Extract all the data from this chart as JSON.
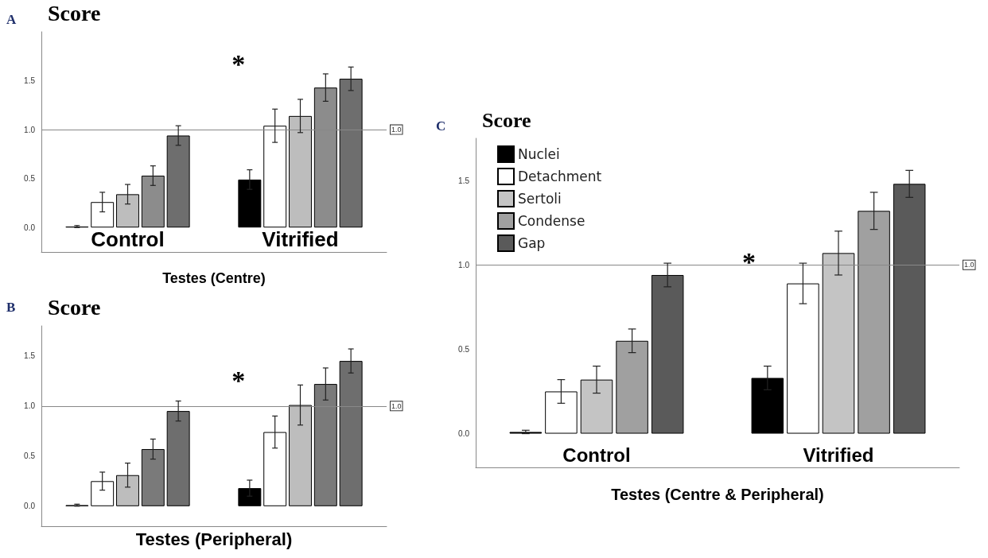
{
  "chart_data": [
    {
      "type": "bar",
      "ylabel": "Score",
      "xlabel": "Testes (Centre)",
      "annotations": [
        "A",
        "*"
      ],
      "categories": [
        "Control",
        "Vitrified"
      ],
      "ylim": [
        -0.25,
        2.0
      ],
      "yticks": [
        {
          "value": 0,
          "label": "0.0"
        },
        {
          "value": 0.5,
          "label": "0.5"
        },
        {
          "value": 1,
          "label": "1.0"
        },
        {
          "value": 1.5,
          "label": "1.5"
        }
      ],
      "grid": false,
      "legend": false,
      "ref_lines": [
        {
          "axis": "y",
          "value": 1,
          "label": "1.0"
        }
      ],
      "series": [
        {
          "color": "#000000",
          "values": [
            0.01,
            0.49
          ],
          "errors": [
            0.01,
            0.1
          ]
        },
        {
          "color": "#ffffff",
          "values": [
            0.26,
            1.04
          ],
          "errors": [
            0.1,
            0.17
          ]
        },
        {
          "color": "#bdbdbd",
          "values": [
            0.34,
            1.14
          ],
          "errors": [
            0.1,
            0.17
          ]
        },
        {
          "color": "#8c8c8c",
          "values": [
            0.53,
            1.43
          ],
          "errors": [
            0.1,
            0.14
          ]
        },
        {
          "color": "#6e6e6e",
          "values": [
            0.94,
            1.52
          ],
          "errors": [
            0.1,
            0.12
          ]
        }
      ]
    },
    {
      "type": "bar",
      "ylabel": "Score",
      "xlabel": "Testes (Peripheral)",
      "annotations": [
        "B",
        "*"
      ],
      "categories": [
        null,
        null
      ],
      "ylim": [
        -0.2,
        1.8
      ],
      "yticks": [
        {
          "value": 0,
          "label": "0.0"
        },
        {
          "value": 0.5,
          "label": "0.5"
        },
        {
          "value": 1,
          "label": "1.0"
        },
        {
          "value": 1.5,
          "label": "1.5"
        }
      ],
      "grid": false,
      "legend": false,
      "ref_lines": [
        {
          "axis": "y",
          "value": 1,
          "label": "1.0"
        }
      ],
      "series": [
        {
          "color": "#000000",
          "values": [
            0.01,
            0.18
          ],
          "errors": [
            0.01,
            0.08
          ]
        },
        {
          "color": "#ffffff",
          "values": [
            0.25,
            0.74
          ],
          "errors": [
            0.09,
            0.16
          ]
        },
        {
          "color": "#bdbdbd",
          "values": [
            0.31,
            1.01
          ],
          "errors": [
            0.12,
            0.2
          ]
        },
        {
          "color": "#7a7a7a",
          "values": [
            0.57,
            1.22
          ],
          "errors": [
            0.1,
            0.16
          ]
        },
        {
          "color": "#6e6e6e",
          "values": [
            0.95,
            1.45
          ],
          "errors": [
            0.1,
            0.12
          ]
        }
      ]
    },
    {
      "type": "bar",
      "ylabel": "Score",
      "xlabel": "Testes (Centre & Peripheral)",
      "annotations": [
        "C",
        "*"
      ],
      "categories": [
        "Control",
        "Vitrified"
      ],
      "ylim": [
        -0.2,
        1.75
      ],
      "yticks": [
        {
          "value": 0,
          "label": "0.0"
        },
        {
          "value": 0.5,
          "label": "0.5"
        },
        {
          "value": 1,
          "label": "1.0"
        },
        {
          "value": 1.5,
          "label": "1.5"
        }
      ],
      "grid": false,
      "legend": "top left",
      "ref_lines": [
        {
          "axis": "y",
          "value": 1,
          "label": "1.0"
        }
      ],
      "series": [
        {
          "name": "Nuclei",
          "color": "#000000",
          "values": [
            0.01,
            0.33
          ],
          "errors": [
            0.01,
            0.07
          ]
        },
        {
          "name": "Detachment",
          "color": "#ffffff",
          "values": [
            0.25,
            0.89
          ],
          "errors": [
            0.07,
            0.12
          ]
        },
        {
          "name": "Sertoli",
          "color": "#c4c4c4",
          "values": [
            0.32,
            1.07
          ],
          "errors": [
            0.08,
            0.13
          ]
        },
        {
          "name": "Condense",
          "color": "#a0a0a0",
          "values": [
            0.55,
            1.32
          ],
          "errors": [
            0.07,
            0.11
          ]
        },
        {
          "name": "Gap",
          "color": "#5a5a5a",
          "values": [
            0.94,
            1.48
          ],
          "errors": [
            0.07,
            0.08
          ]
        }
      ]
    }
  ]
}
